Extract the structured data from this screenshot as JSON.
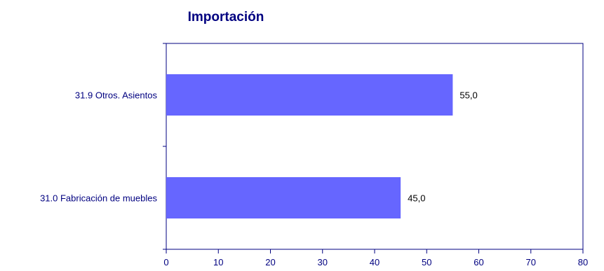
{
  "colors": {
    "text": "#000080",
    "bar": "#6666ff",
    "axis": "#000080",
    "background": "#ffffff"
  },
  "chart_data": {
    "type": "bar",
    "orientation": "horizontal",
    "title": "Importación",
    "xlabel": "",
    "ylabel": "",
    "categories": [
      "31.9 Otros. Asientos",
      "31.0 Fabricación de muebles"
    ],
    "values": [
      55.0,
      45.0
    ],
    "data_labels": [
      "55,0",
      "45,0"
    ],
    "xlim": [
      0,
      80
    ],
    "x_ticks": [
      0,
      10,
      20,
      30,
      40,
      50,
      60,
      70,
      80
    ],
    "grid": false,
    "legend": "none"
  }
}
